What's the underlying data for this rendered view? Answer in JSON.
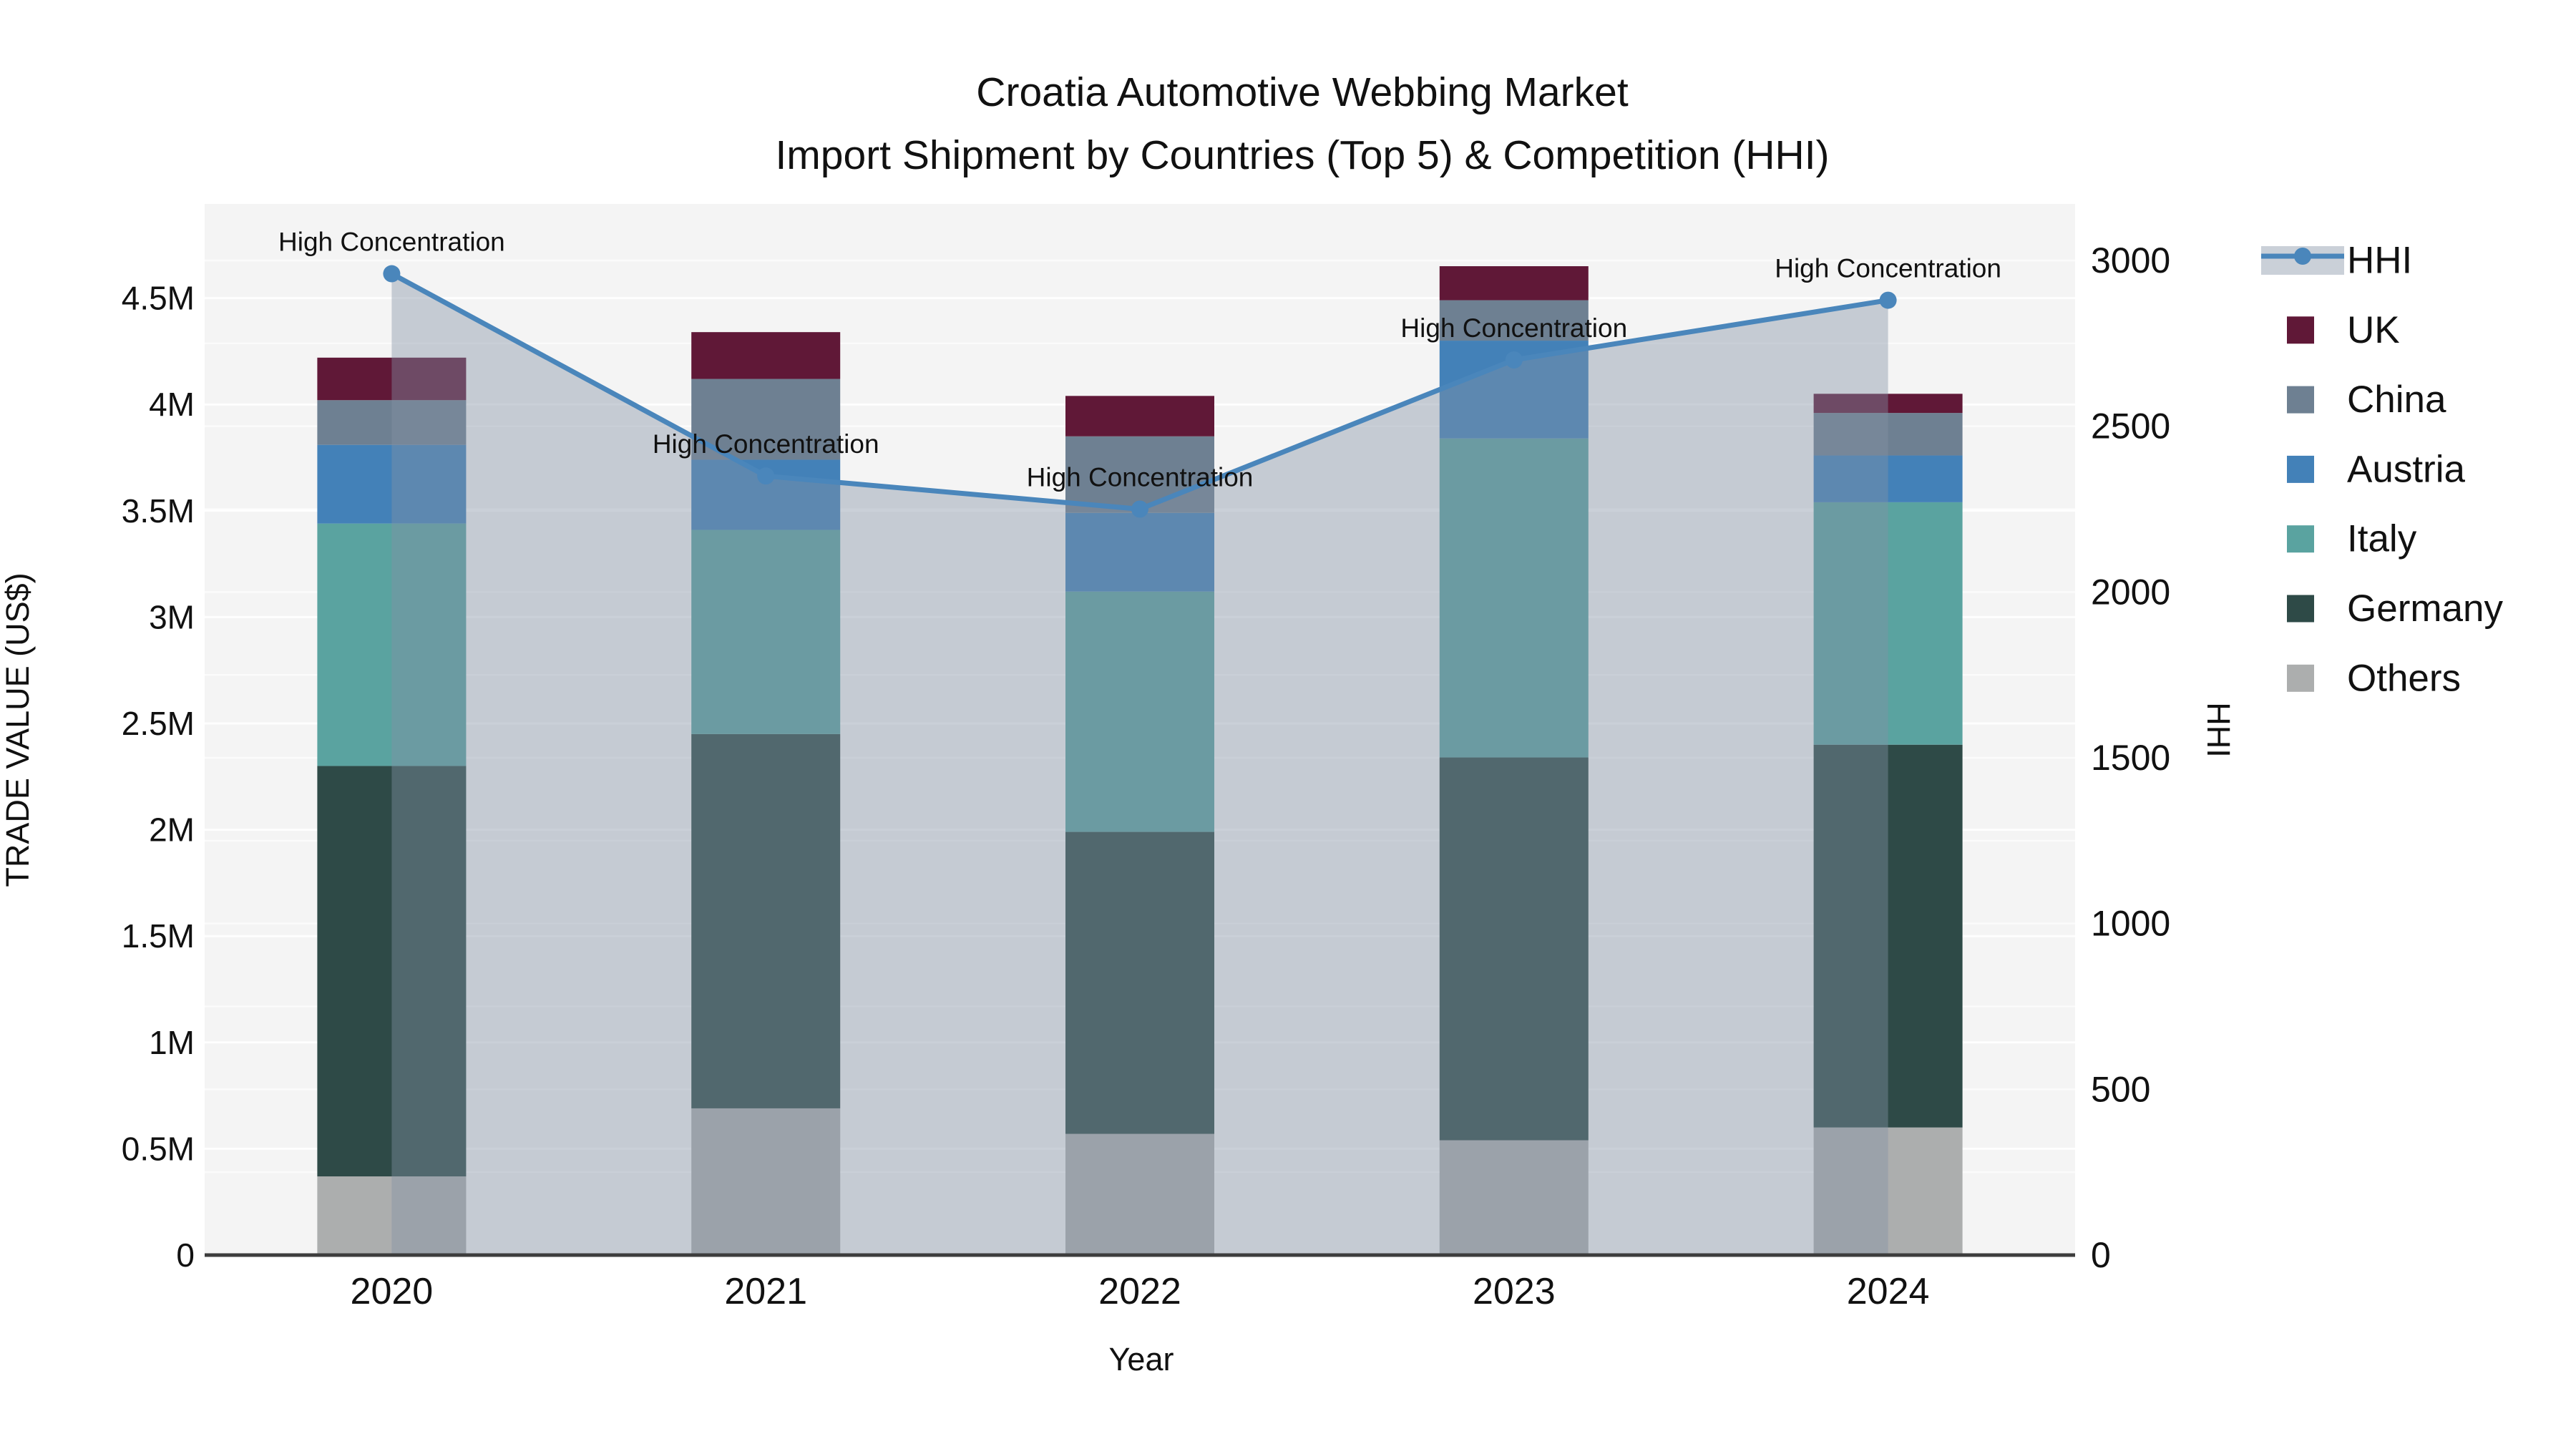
{
  "title": {
    "line1": "Croatia Automotive Webbing Market",
    "line2": "Import Shipment by Countries (Top 5) & Competition (HHI)"
  },
  "chart_data": {
    "type": "combo-stacked-bar-and-line-area",
    "categories": [
      "2020",
      "2021",
      "2022",
      "2023",
      "2024"
    ],
    "x_axis_title": "Year",
    "y_left": {
      "title": "TRADE VALUE (US$)",
      "tick_labels": [
        "0",
        "0.5M",
        "1M",
        "1.5M",
        "2M",
        "2.5M",
        "3M",
        "3.5M",
        "4M",
        "4.5M"
      ],
      "tick_values_musd": [
        0,
        0.5,
        1,
        1.5,
        2,
        2.5,
        3,
        3.5,
        4,
        4.5
      ],
      "range_musd": [
        0,
        4.94
      ],
      "grid": true
    },
    "y_right": {
      "title": "HHI",
      "tick_labels": [
        "0",
        "500",
        "1000",
        "1500",
        "2000",
        "2500",
        "3000"
      ],
      "tick_values": [
        0,
        500,
        1000,
        1500,
        2000,
        2500,
        3000
      ],
      "range": [
        0,
        3170
      ],
      "grid": true
    },
    "series": [
      {
        "name": "Others",
        "color": "#acaeae",
        "values_musd": [
          0.37,
          0.69,
          0.57,
          0.54,
          0.6
        ]
      },
      {
        "name": "Germany",
        "color": "#2e4a47",
        "values_musd": [
          1.93,
          1.76,
          1.42,
          1.8,
          1.8
        ]
      },
      {
        "name": "Italy",
        "color": "#5aa3a0",
        "values_musd": [
          1.14,
          0.96,
          1.13,
          1.5,
          1.14
        ]
      },
      {
        "name": "Austria",
        "color": "#4381b8",
        "values_musd": [
          0.37,
          0.33,
          0.37,
          0.46,
          0.22
        ]
      },
      {
        "name": "China",
        "color": "#6e8092",
        "values_musd": [
          0.21,
          0.38,
          0.36,
          0.19,
          0.2
        ]
      },
      {
        "name": "UK",
        "color": "#601837",
        "values_musd": [
          0.2,
          0.22,
          0.19,
          0.16,
          0.09
        ]
      }
    ],
    "hhi": {
      "name": "HHI",
      "line_color": "#4a86bb",
      "area_fill": "rgba(130,145,165,0.42)",
      "legend_band_color": "#cad0d8",
      "values": [
        2960,
        2350,
        2250,
        2700,
        2880
      ],
      "annotations": [
        "High Concentration",
        "High Concentration",
        "High Concentration",
        "High Concentration",
        "High Concentration"
      ]
    },
    "legend_order": [
      "HHI",
      "UK",
      "China",
      "Austria",
      "Italy",
      "Germany",
      "Others"
    ],
    "colors": {
      "plot_background": "#f4f4f4",
      "figure_background": "#ffffff",
      "gridline": "#ffffff",
      "axis_line": "#3d3d3d",
      "text": "#111111"
    }
  }
}
